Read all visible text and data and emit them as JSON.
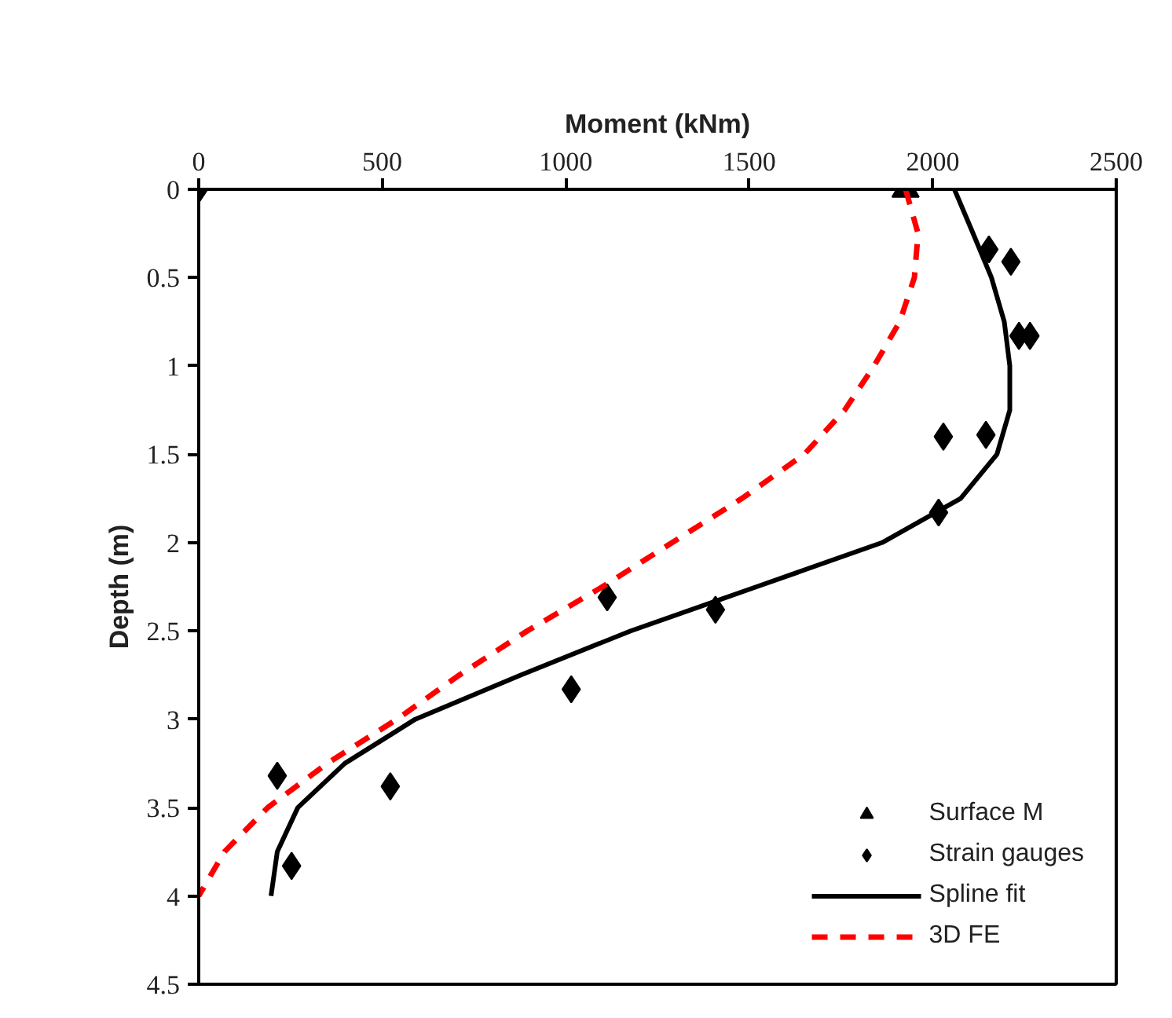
{
  "chart_data": {
    "type": "line",
    "xlabel": "Moment (kNm)",
    "ylabel": "Depth (m)",
    "xlim": [
      0,
      2500
    ],
    "xticks": [
      0,
      500,
      1000,
      1500,
      2000,
      2500
    ],
    "ylim": [
      4.5,
      0
    ],
    "yticks": [
      0,
      0.5,
      1,
      1.5,
      2,
      2.5,
      3,
      3.5,
      4,
      4.5
    ],
    "grid": false,
    "legend": "bottom right",
    "series": [
      {
        "name": "Surface M",
        "type": "scatter",
        "marker": "triangle",
        "color": "#000000",
        "x": [
          1926
        ],
        "values": [
          0
        ]
      },
      {
        "name": "Strain gauges",
        "type": "scatter",
        "marker": "diamond",
        "color": "#000000",
        "x": [
          0,
          2153,
          2213,
          2235,
          2265,
          2029,
          2145,
          2016,
          1113,
          1408,
          1015,
          214,
          522,
          253
        ],
        "values": [
          0,
          0.34,
          0.41,
          0.83,
          0.83,
          1.4,
          1.39,
          1.83,
          2.31,
          2.38,
          2.83,
          3.32,
          3.38,
          3.83
        ]
      },
      {
        "name": "Spline fit",
        "line_style": "solid",
        "color": "#000000",
        "x": [
          2059,
          2110,
          2160,
          2195,
          2210,
          2210,
          2175,
          2076,
          1862,
          1520,
          1177,
          877,
          590,
          398,
          270,
          214,
          197
        ],
        "values": [
          0,
          0.25,
          0.5,
          0.75,
          1.0,
          1.25,
          1.5,
          1.75,
          2.0,
          2.25,
          2.5,
          2.75,
          3.0,
          3.25,
          3.5,
          3.75,
          4.0
        ]
      },
      {
        "name": "3D FE",
        "line_style": "dashed",
        "color": "#ff0000",
        "x": [
          1926,
          1960,
          1950,
          1910,
          1840,
          1760,
          1650,
          1480,
          1290,
          1100,
          895,
          710,
          540,
          350,
          188,
          70,
          0
        ],
        "values": [
          0,
          0.25,
          0.5,
          0.75,
          1.0,
          1.25,
          1.5,
          1.75,
          2.0,
          2.25,
          2.5,
          2.75,
          3.0,
          3.25,
          3.5,
          3.75,
          4.0
        ]
      }
    ]
  }
}
